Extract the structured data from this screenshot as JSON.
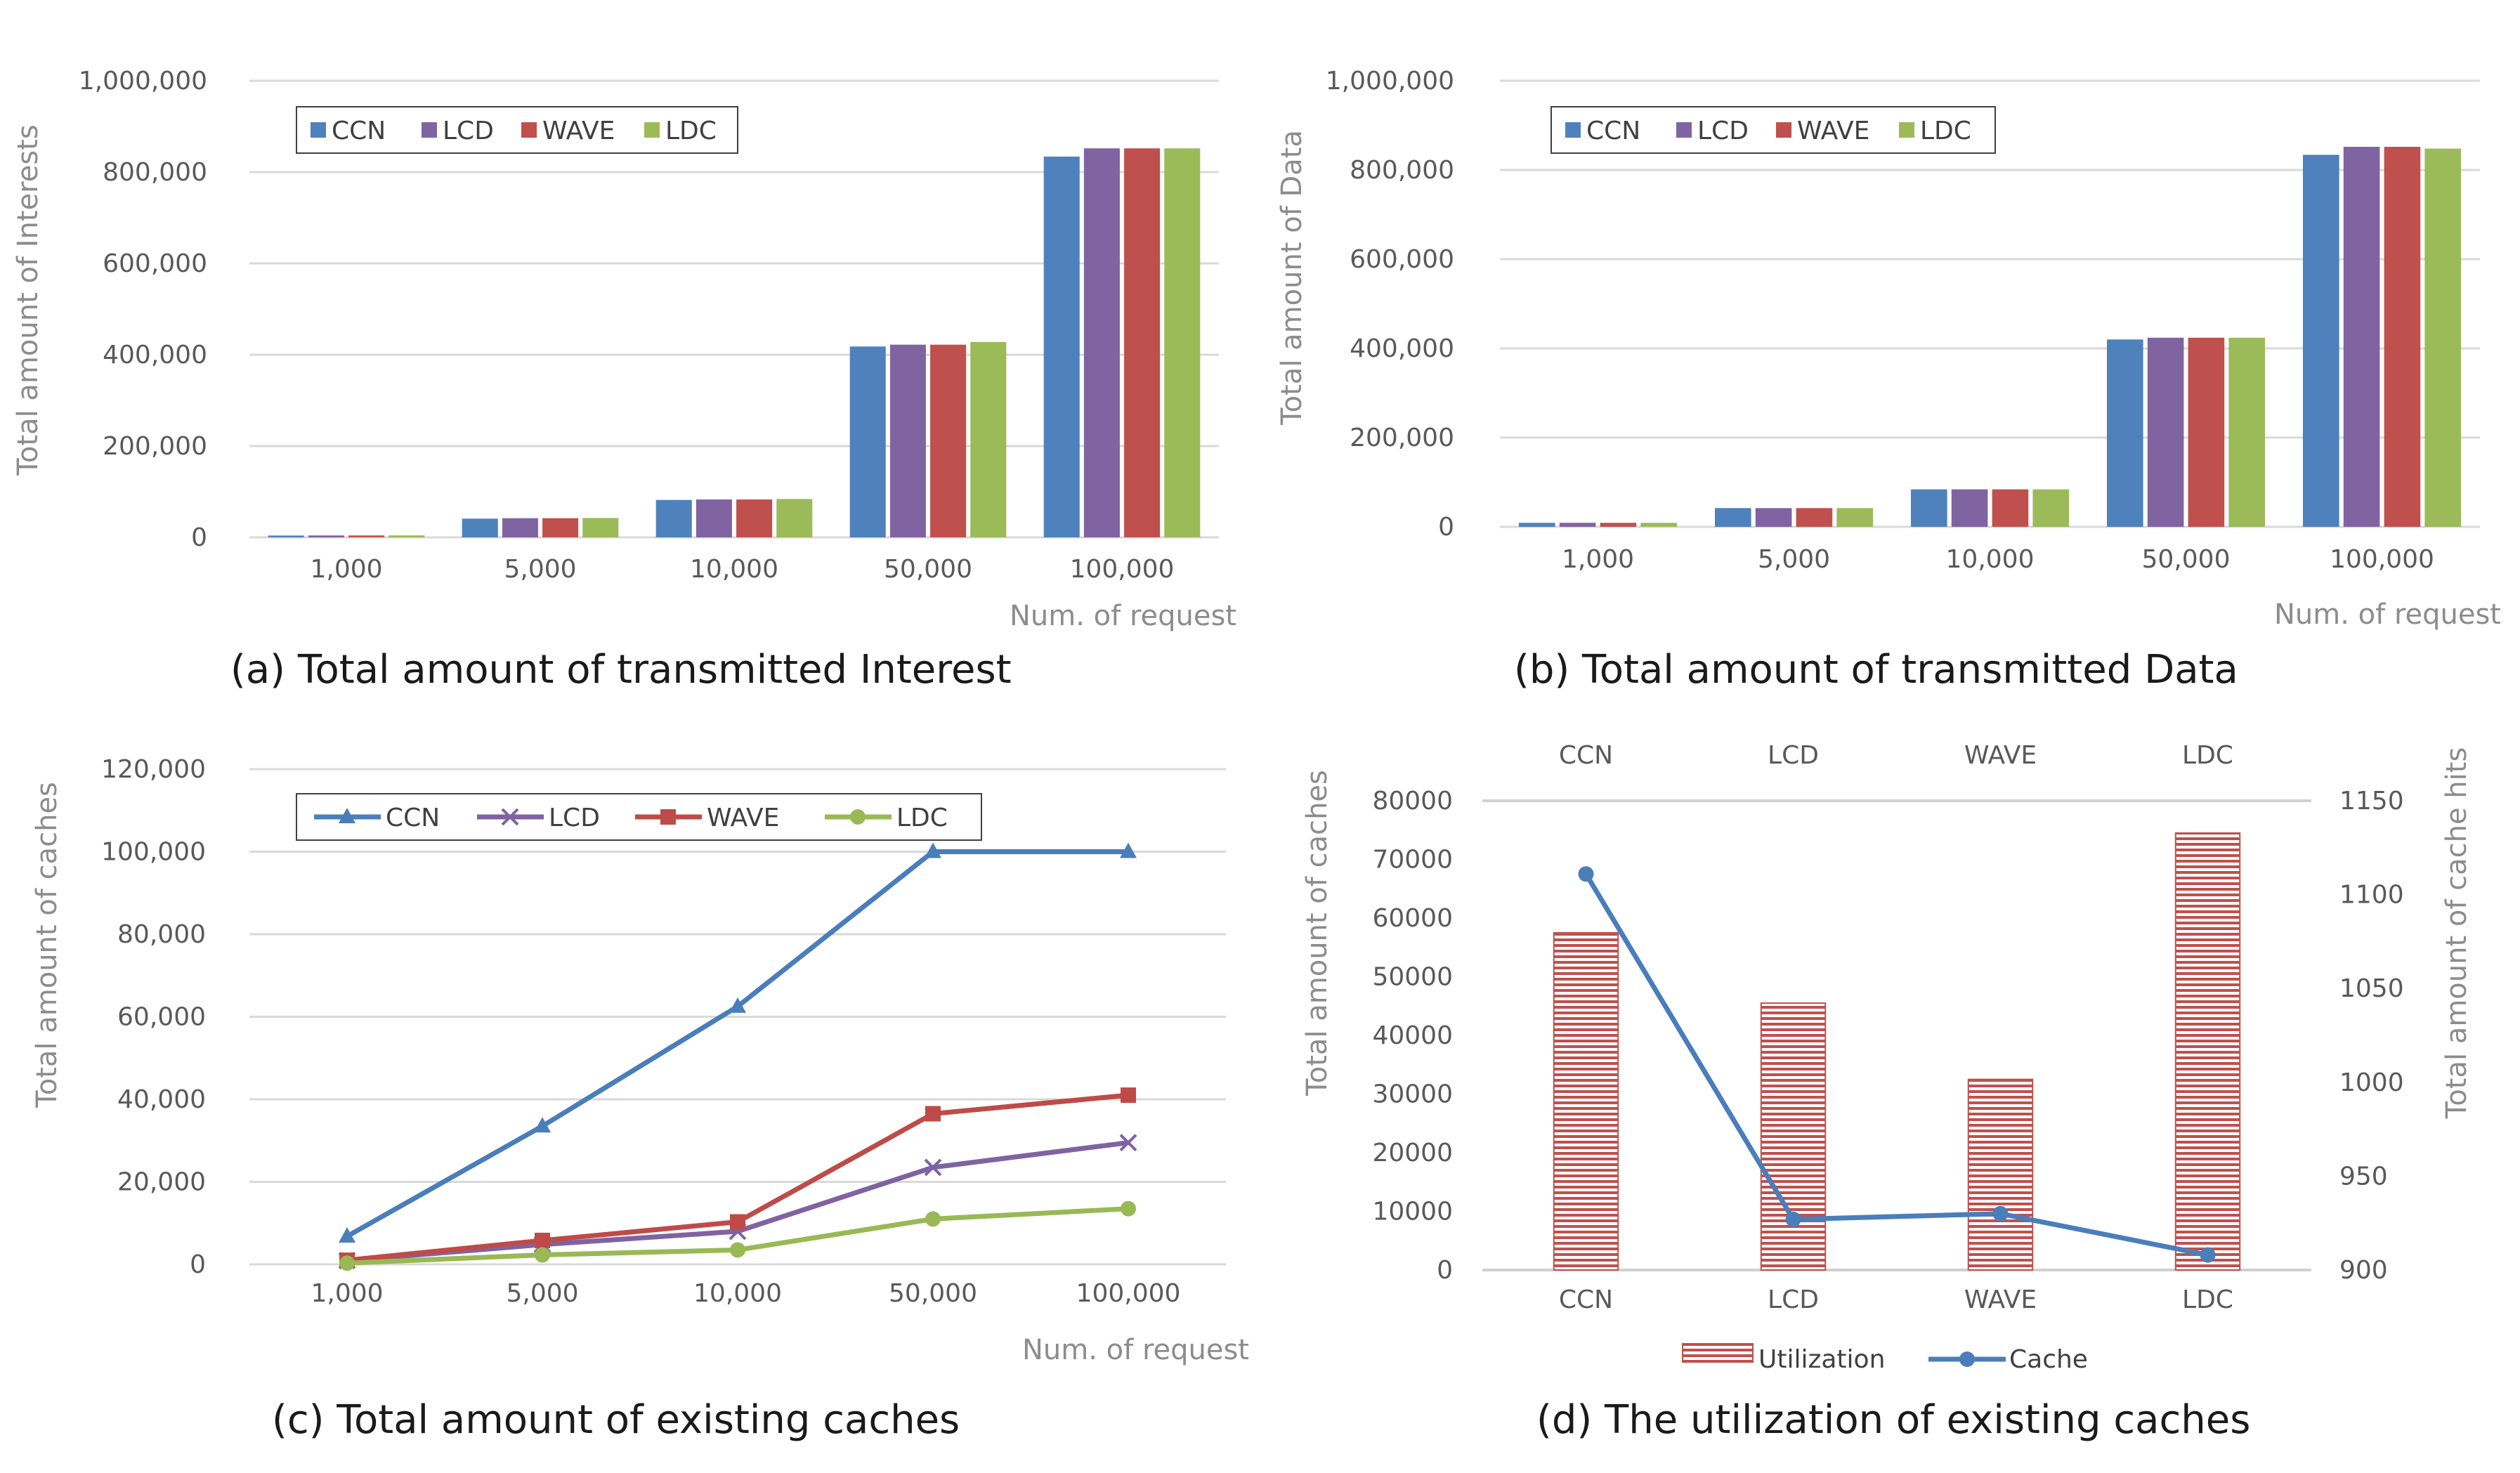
{
  "chart_data": [
    {
      "id": "a",
      "type": "bar",
      "caption": "(a) Total amount of transmitted Interest",
      "ylabel": "Total amount of Interests",
      "xlabel": "Num. of request",
      "categories": [
        "1,000",
        "5,000",
        "10,000",
        "50,000",
        "100,000"
      ],
      "ylim": [
        0,
        1000000
      ],
      "yticks": [
        0,
        200000,
        400000,
        600000,
        800000,
        1000000
      ],
      "ytick_labels": [
        "0",
        "200,000",
        "400,000",
        "600,000",
        "800,000",
        "1,000,000"
      ],
      "series": [
        {
          "name": "CCN",
          "color": "#4f81bd",
          "values": [
            4000,
            41000,
            82000,
            418000,
            834000
          ]
        },
        {
          "name": "LCD",
          "color": "#8064a2",
          "values": [
            4200,
            42000,
            83000,
            422000,
            852000
          ]
        },
        {
          "name": "WAVE",
          "color": "#c0504d",
          "values": [
            4200,
            42000,
            83000,
            422000,
            852000
          ]
        },
        {
          "name": "LDC",
          "color": "#9bbb59",
          "values": [
            4300,
            42500,
            84000,
            428000,
            852000
          ]
        }
      ]
    },
    {
      "id": "b",
      "type": "bar",
      "caption": "(b) Total amount of transmitted Data",
      "ylabel": "Total amount of Data",
      "xlabel": "Num. of request",
      "categories": [
        "1,000",
        "5,000",
        "10,000",
        "50,000",
        "100,000"
      ],
      "ylim": [
        0,
        1000000
      ],
      "yticks": [
        0,
        200000,
        400000,
        600000,
        800000,
        1000000
      ],
      "ytick_labels": [
        "0",
        "200,000",
        "400,000",
        "600,000",
        "800,000",
        "1,000,000"
      ],
      "series": [
        {
          "name": "CCN",
          "color": "#4f81bd",
          "values": [
            9000,
            42000,
            84000,
            420000,
            834000
          ]
        },
        {
          "name": "LCD",
          "color": "#8064a2",
          "values": [
            9000,
            42000,
            84000,
            424000,
            852000
          ]
        },
        {
          "name": "WAVE",
          "color": "#c0504d",
          "values": [
            9000,
            42000,
            84000,
            424000,
            852000
          ]
        },
        {
          "name": "LDC",
          "color": "#9bbb59",
          "values": [
            9000,
            42000,
            84000,
            424000,
            848000
          ]
        }
      ]
    },
    {
      "id": "c",
      "type": "line",
      "caption": "(c) Total amount of existing caches",
      "ylabel": "Total amount of caches",
      "xlabel": "Num. of request",
      "categories": [
        "1,000",
        "5,000",
        "10,000",
        "50,000",
        "100,000"
      ],
      "ylim": [
        0,
        120000
      ],
      "yticks": [
        0,
        20000,
        40000,
        60000,
        80000,
        100000,
        120000
      ],
      "ytick_labels": [
        "0",
        "20,000",
        "40,000",
        "60,000",
        "80,000",
        "100,000",
        "120,000"
      ],
      "series": [
        {
          "name": "CCN",
          "color": "#4a7ebb",
          "marker": "triangle",
          "values": [
            6800,
            33500,
            62500,
            100000,
            100000
          ]
        },
        {
          "name": "LCD",
          "color": "#7f63a1",
          "marker": "x",
          "values": [
            900,
            4800,
            8000,
            23500,
            29500
          ]
        },
        {
          "name": "WAVE",
          "color": "#be4b48",
          "marker": "square",
          "values": [
            1000,
            5800,
            10300,
            36500,
            41000
          ]
        },
        {
          "name": "LDC",
          "color": "#98b954",
          "marker": "circle",
          "values": [
            300,
            2300,
            3500,
            11000,
            13500
          ]
        }
      ]
    },
    {
      "id": "d",
      "type": "bar",
      "caption": "(d) The utilization of existing caches",
      "ylabel": "Total amount of caches",
      "ylabel_right": "Total amount of cache hits",
      "categories": [
        "CCN",
        "LCD",
        "WAVE",
        "LDC"
      ],
      "ylim": [
        0,
        80000
      ],
      "yticks": [
        0,
        10000,
        20000,
        30000,
        40000,
        50000,
        60000,
        70000,
        80000
      ],
      "ytick_labels": [
        "0",
        "10000",
        "20000",
        "30000",
        "40000",
        "50000",
        "60000",
        "70000",
        "80000"
      ],
      "ylim_right": [
        900,
        1150
      ],
      "yticks_right": [
        900,
        950,
        1000,
        1050,
        1100,
        1150
      ],
      "ytick_labels_right": [
        "900",
        "950",
        "1000",
        "1050",
        "1100",
        "1150"
      ],
      "series": [
        {
          "name": "Utilization",
          "type": "bar",
          "axis": "left",
          "color": "#c0504d",
          "values": [
            57500,
            45500,
            32500,
            74500
          ]
        },
        {
          "name": "Cache",
          "type": "line",
          "axis": "right",
          "color": "#4a7ebb",
          "marker": "circle",
          "values": [
            1111,
            927,
            930,
            908
          ]
        }
      ]
    }
  ]
}
